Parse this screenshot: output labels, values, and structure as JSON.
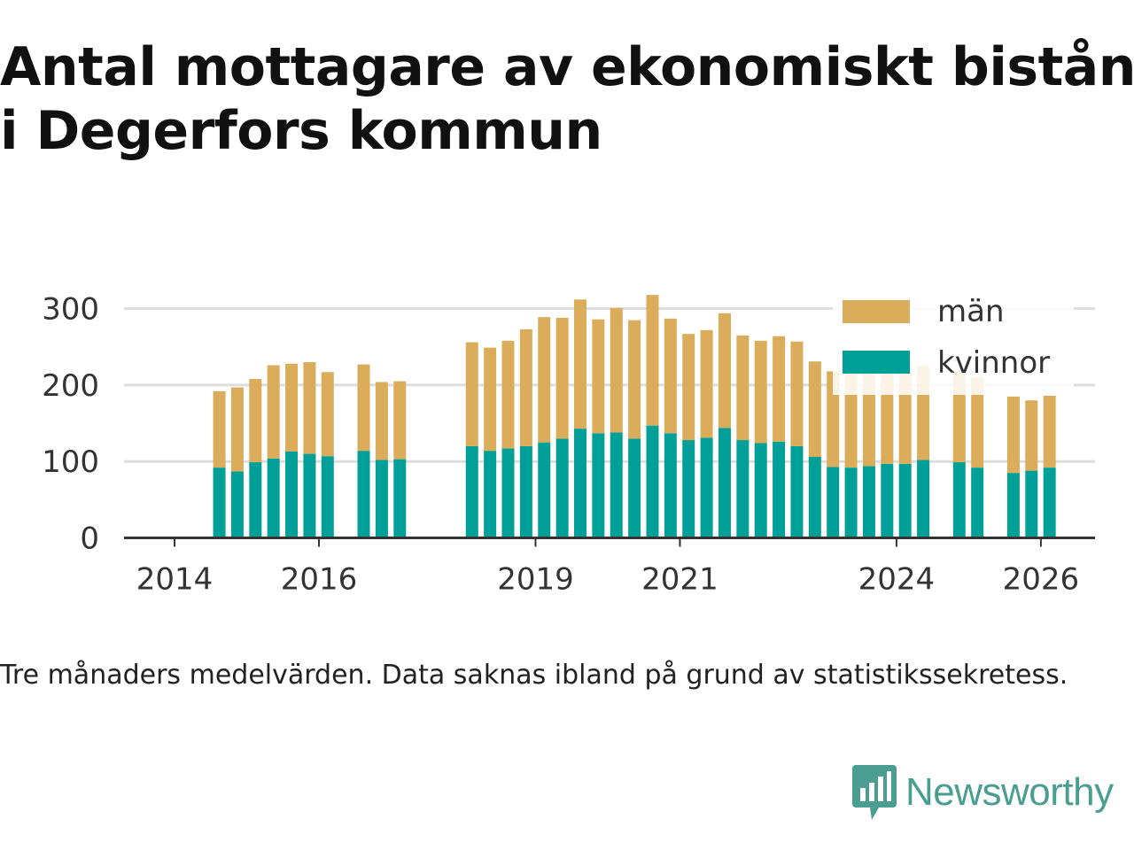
{
  "title": {
    "line1": "Antal mottagare av ekonomiskt bistånd",
    "line2": "i Degerfors kommun"
  },
  "footnote": "Tre månaders medelvärden. Data saknas ibland på grund av statistikssekretess.",
  "brand": {
    "name": "Newsworthy",
    "icon": "newsworthy-logo-icon",
    "color": "#4a9d91"
  },
  "colors": {
    "men": "#dbad5b",
    "women": "#00a099",
    "grid": "#dddddd",
    "axis": "#333333",
    "text": "#333333"
  },
  "chart_data": {
    "type": "bar",
    "stacked": true,
    "title": "Antal mottagare av ekonomiskt bistånd i Degerfors kommun",
    "ylim": [
      0,
      310
    ],
    "yticks": [
      0,
      100,
      200,
      300
    ],
    "xlim": [
      2013.3,
      2026.75
    ],
    "xticks": [
      2014,
      2016,
      2019,
      2021,
      2024,
      2026
    ],
    "grid": true,
    "legend": "top-right",
    "x": [
      2014.62,
      2014.87,
      2015.12,
      2015.37,
      2015.62,
      2015.87,
      2016.12,
      2016.62,
      2016.87,
      2017.12,
      2018.12,
      2018.37,
      2018.62,
      2018.87,
      2019.12,
      2019.37,
      2019.62,
      2019.87,
      2020.12,
      2020.37,
      2020.62,
      2020.87,
      2021.12,
      2021.37,
      2021.62,
      2021.87,
      2022.12,
      2022.37,
      2022.62,
      2022.87,
      2023.12,
      2023.37,
      2023.62,
      2023.87,
      2024.12,
      2024.37,
      2024.87,
      2025.12,
      2025.62,
      2025.87,
      2026.12
    ],
    "series": [
      {
        "name": "kvinnor",
        "values": [
          92,
          87,
          99,
          104,
          113,
          110,
          107,
          114,
          102,
          103,
          120,
          114,
          117,
          120,
          125,
          130,
          143,
          137,
          138,
          130,
          147,
          137,
          128,
          131,
          144,
          128,
          124,
          126,
          120,
          106,
          93,
          92,
          94,
          97,
          97,
          102,
          99,
          92,
          85,
          88,
          92
        ]
      },
      {
        "name": "män",
        "values": [
          100,
          110,
          109,
          122,
          115,
          120,
          110,
          113,
          102,
          102,
          136,
          135,
          141,
          153,
          164,
          158,
          169,
          149,
          163,
          155,
          171,
          150,
          139,
          141,
          150,
          137,
          134,
          138,
          137,
          125,
          125,
          123,
          126,
          127,
          127,
          123,
          120,
          118,
          100,
          92,
          94
        ]
      }
    ]
  }
}
